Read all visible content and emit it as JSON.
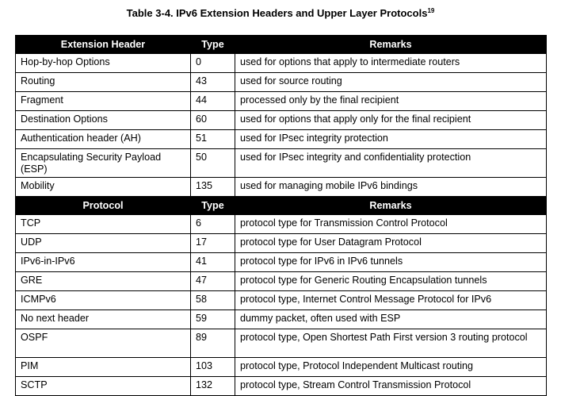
{
  "caption": {
    "title": "Table 3-4.  IPv6 Extension Headers and Upper Layer Protocols",
    "footnote": "19"
  },
  "extension_section": {
    "headers": [
      "Extension Header",
      "Type",
      "Remarks"
    ],
    "rows": [
      {
        "name": "Hop-by-hop Options",
        "type": "0",
        "remarks": "used for options that apply to intermediate routers"
      },
      {
        "name": "Routing",
        "type": "43",
        "remarks": "used for source routing"
      },
      {
        "name": "Fragment",
        "type": "44",
        "remarks": "processed only by the final recipient"
      },
      {
        "name": "Destination Options",
        "type": "60",
        "remarks": "used for options that apply only for the final recipient"
      },
      {
        "name": "Authentication header (AH)",
        "type": "51",
        "remarks": "used for IPsec integrity protection"
      },
      {
        "name": "Encapsulating Security Payload (ESP)",
        "type": "50",
        "remarks": "used for IPsec integrity and confidentiality protection"
      },
      {
        "name": "Mobility",
        "type": "135",
        "remarks": "used for managing mobile IPv6 bindings"
      }
    ]
  },
  "protocol_section": {
    "headers": [
      "Protocol",
      "Type",
      "Remarks"
    ],
    "rows": [
      {
        "name": "TCP",
        "type": "6",
        "remarks": "protocol type for Transmission Control Protocol"
      },
      {
        "name": "UDP",
        "type": "17",
        "remarks": "protocol type for User Datagram Protocol"
      },
      {
        "name": "IPv6-in-IPv6",
        "type": "41",
        "remarks": "protocol type for IPv6 in IPv6 tunnels"
      },
      {
        "name": "GRE",
        "type": "47",
        "remarks": "protocol type for Generic Routing Encapsulation tunnels"
      },
      {
        "name": "ICMPv6",
        "type": "58",
        "remarks": "protocol type, Internet Control Message Protocol for IPv6"
      },
      {
        "name": "No next header",
        "type": "59",
        "remarks": "dummy packet, often used with ESP"
      },
      {
        "name": "OSPF",
        "type": "89",
        "remarks": "protocol type, Open Shortest Path First version 3 routing protocol"
      },
      {
        "name": "PIM",
        "type": "103",
        "remarks": "protocol type, Protocol Independent Multicast routing"
      },
      {
        "name": "SCTP",
        "type": "132",
        "remarks": "protocol type, Stream Control Transmission Protocol"
      }
    ]
  }
}
